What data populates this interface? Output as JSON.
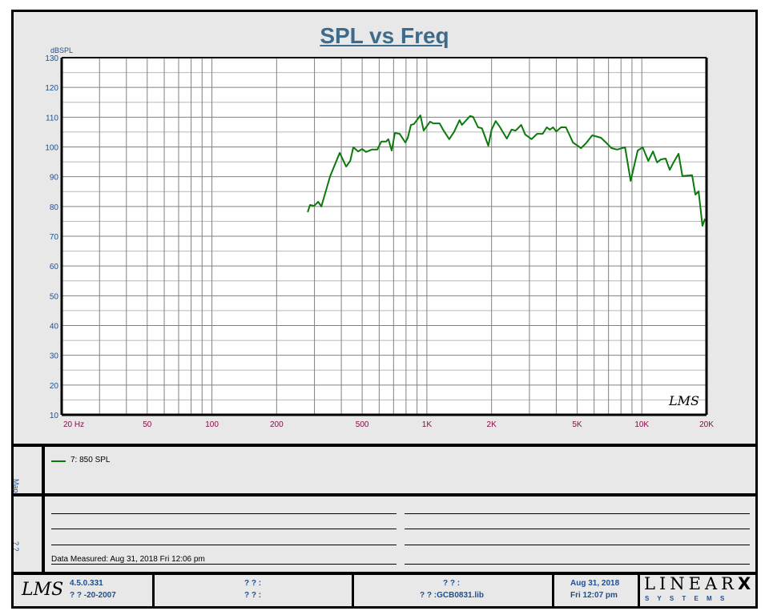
{
  "title": "SPL vs Freq",
  "chart_data": {
    "type": "line",
    "title": "SPL vs Freq",
    "xlabel": "",
    "ylabel": "dBSPL",
    "xscale": "log",
    "xlim": [
      20,
      20000
    ],
    "ylim": [
      10,
      130
    ],
    "grid": true,
    "x_tick_labels": [
      {
        "value": 20,
        "label": "20  Hz"
      },
      {
        "value": 50,
        "label": "50"
      },
      {
        "value": 100,
        "label": "100"
      },
      {
        "value": 200,
        "label": "200"
      },
      {
        "value": 500,
        "label": "500"
      },
      {
        "value": 1000,
        "label": "1K"
      },
      {
        "value": 2000,
        "label": "2K"
      },
      {
        "value": 5000,
        "label": "5K"
      },
      {
        "value": 10000,
        "label": "10K"
      },
      {
        "value": 20000,
        "label": "20K"
      }
    ],
    "y_ticks": [
      10,
      20,
      30,
      40,
      50,
      60,
      70,
      80,
      90,
      100,
      110,
      120,
      130
    ],
    "legend_position": "bottom-panel",
    "series": [
      {
        "name": "7: 850 SPL",
        "color": "#0a7a0a",
        "x": [
          279,
          286,
          299,
          312,
          323,
          340,
          355,
          393,
          421,
          440,
          455,
          479,
          500,
          521,
          554,
          588,
          614,
          646,
          662,
          686,
          710,
          747,
          794,
          815,
          843,
          871,
          933,
          966,
          1035,
          1072,
          1146,
          1197,
          1271,
          1337,
          1419,
          1456,
          1589,
          1641,
          1730,
          1804,
          1932,
          2000,
          2090,
          2178,
          2354,
          2478,
          2588,
          2748,
          2866,
          3070,
          3258,
          3460,
          3614,
          3734,
          3864,
          4000,
          4208,
          4436,
          4786,
          5212,
          5496,
          5876,
          6456,
          6808,
          7228,
          7674,
          8356,
          8872,
          9572,
          10094,
          10716,
          11272,
          11776,
          12276,
          12914,
          13490,
          14094,
          14826,
          15454,
          17140,
          17744,
          18368,
          19150,
          19680
        ],
        "y": [
          78.1,
          80.5,
          80.2,
          81.6,
          80.0,
          85.6,
          90.2,
          98.0,
          93.4,
          95.3,
          99.9,
          98.5,
          99.3,
          98.3,
          99.1,
          99.1,
          101.8,
          101.8,
          102.6,
          98.8,
          104.7,
          104.4,
          101.5,
          103.1,
          107.4,
          107.7,
          110.6,
          105.5,
          108.5,
          107.9,
          107.9,
          105.5,
          102.6,
          105.0,
          109.0,
          107.4,
          110.4,
          110.1,
          106.6,
          106.3,
          100.4,
          105.8,
          108.7,
          106.9,
          102.8,
          105.8,
          105.5,
          107.4,
          104.2,
          102.6,
          104.4,
          104.4,
          106.6,
          105.8,
          106.6,
          105.2,
          106.6,
          106.6,
          101.5,
          99.6,
          101.2,
          103.9,
          103.1,
          101.5,
          99.6,
          99.1,
          99.9,
          88.6,
          98.8,
          99.9,
          95.3,
          98.5,
          94.8,
          95.8,
          96.1,
          92.3,
          95.0,
          97.7,
          90.2,
          90.5,
          84.0,
          85.1,
          73.5,
          75.9
        ]
      }
    ]
  },
  "side_labels": {
    "legend": "Map",
    "notes": "? ?"
  },
  "legend": {
    "items": [
      {
        "label": "7: 850 SPL",
        "color": "#0a7a0a"
      }
    ]
  },
  "notes": {
    "measured": "Data Measured: Aug 31, 2018  Fri 12:06 pm"
  },
  "footer": {
    "logo": "LMS",
    "version": "4.5.0.331",
    "version_date": "? ? -20-2007",
    "field1": "? ? :",
    "field2": "? ? :",
    "field3": "? ? :",
    "library": "? ? :GCB0831.lib",
    "date": "Aug 31, 2018",
    "time": "Fri 12:07 pm",
    "brand": "LINEAR",
    "brand_x": "X",
    "brand_sub": "S Y S T E M S"
  }
}
